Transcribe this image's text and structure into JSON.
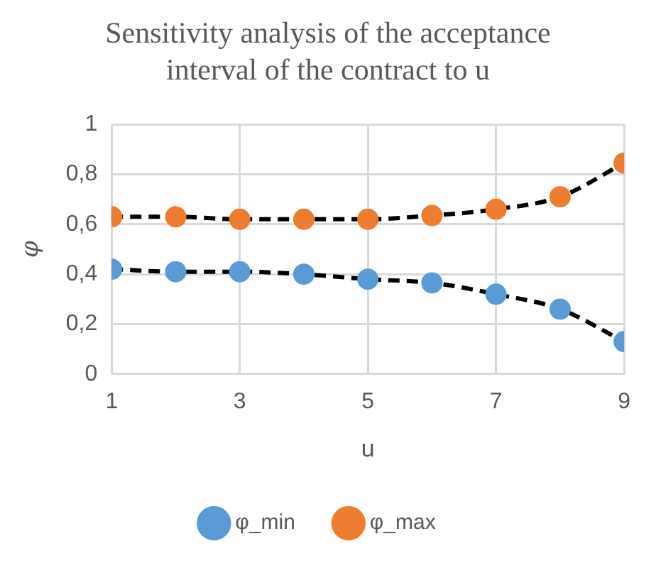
{
  "chart_data": {
    "type": "line",
    "title": "Sensitivity analysis of the acceptance interval of the contract to u",
    "xlabel": "u",
    "ylabel": "φ",
    "x": [
      1,
      2,
      3,
      4,
      5,
      6,
      7,
      8,
      9
    ],
    "series": [
      {
        "name": "φ_min",
        "color": "#5b9bd5",
        "values": [
          0.42,
          0.41,
          0.41,
          0.4,
          0.38,
          0.365,
          0.32,
          0.26,
          0.13
        ],
        "line_style": "dashed"
      },
      {
        "name": "φ_max",
        "color": "#ed7d31",
        "values": [
          0.63,
          0.63,
          0.62,
          0.62,
          0.62,
          0.635,
          0.66,
          0.71,
          0.845
        ],
        "line_style": "dashed"
      }
    ],
    "xlim": [
      1,
      9
    ],
    "xticks": [
      1,
      3,
      5,
      7,
      9
    ],
    "ylim": [
      0,
      1
    ],
    "yticks": [
      0,
      {
        "value": 0.2,
        "label": "0,2"
      },
      {
        "value": 0.4,
        "label": "0,4"
      },
      {
        "value": 0.6,
        "label": "0,6"
      },
      {
        "value": 0.8,
        "label": "0,8"
      },
      1
    ],
    "grid": true,
    "legend": "bottom",
    "marker": "circle"
  }
}
